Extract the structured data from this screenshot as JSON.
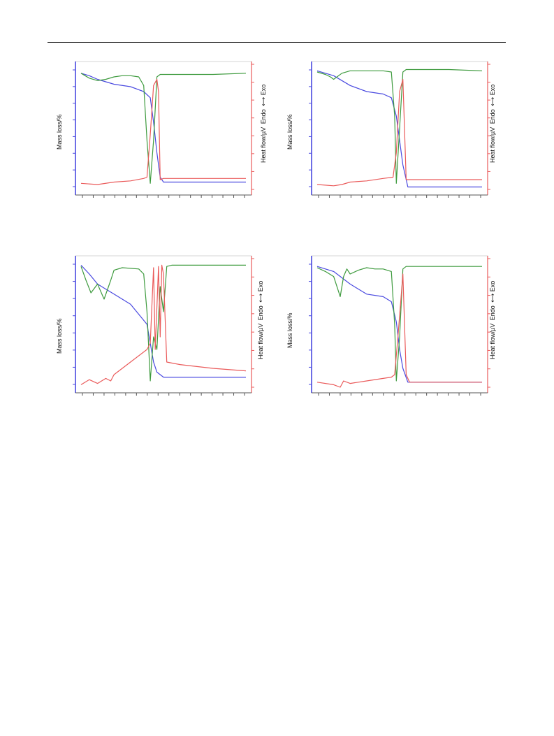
{
  "figure": {
    "left_axis_label": "Mass loss/%",
    "right_axis_label": "Heat flow/µV",
    "endo_label": "Endo",
    "exo_label": "Exo",
    "colors": {
      "mass_curve": "#4a4ae0",
      "dtg_curve": "#3d9a3d",
      "heat_curve": "#ea5a5a",
      "left_axis": "#4a4ae0",
      "right_axis": "#ea5a5a"
    }
  },
  "chart_data": [
    {
      "type": "line",
      "panel": "top-left",
      "x_range": [
        0,
        100
      ],
      "left_ylim": [
        0,
        100
      ],
      "right_ylim": [
        0,
        100
      ],
      "left_ticks": 8,
      "right_ticks": 8,
      "x_ticks": 16,
      "series": [
        {
          "key": "mass",
          "axis": "left",
          "x": [
            0,
            5,
            10,
            20,
            30,
            38,
            42,
            44,
            46,
            48,
            50,
            60,
            80,
            100
          ],
          "y": [
            95,
            93,
            90,
            86,
            84,
            80,
            75,
            55,
            30,
            10,
            6,
            6,
            6,
            6
          ]
        },
        {
          "key": "dtg",
          "axis": "left",
          "x": [
            0,
            5,
            10,
            15,
            20,
            25,
            30,
            35,
            38,
            40,
            42,
            44,
            46,
            48,
            50,
            60,
            80,
            100
          ],
          "y": [
            95,
            91,
            89,
            90,
            92,
            93,
            93,
            92,
            85,
            40,
            5,
            40,
            92,
            94,
            94,
            94,
            94,
            95
          ]
        },
        {
          "key": "heat",
          "axis": "right",
          "x": [
            0,
            10,
            20,
            30,
            38,
            40,
            42,
            44,
            46,
            47,
            48,
            50,
            60,
            80,
            100
          ],
          "y": [
            5,
            4,
            6,
            7,
            9,
            10,
            45,
            85,
            90,
            80,
            8,
            9,
            9,
            9,
            9
          ]
        }
      ]
    },
    {
      "type": "line",
      "panel": "top-right",
      "x_range": [
        0,
        100
      ],
      "left_ylim": [
        0,
        100
      ],
      "right_ylim": [
        0,
        100
      ],
      "left_ticks": 8,
      "right_ticks": 8,
      "x_ticks": 16,
      "series": [
        {
          "key": "mass",
          "axis": "left",
          "x": [
            0,
            10,
            20,
            30,
            40,
            45,
            48,
            50,
            52,
            55,
            60,
            80,
            100
          ],
          "y": [
            97,
            93,
            85,
            80,
            78,
            75,
            60,
            40,
            20,
            2,
            2,
            2,
            2
          ]
        },
        {
          "key": "dtg",
          "axis": "left",
          "x": [
            0,
            5,
            8,
            10,
            15,
            20,
            30,
            40,
            45,
            47,
            48,
            50,
            52,
            54,
            60,
            80,
            100
          ],
          "y": [
            96,
            94,
            92,
            90,
            95,
            97,
            97,
            97,
            96,
            60,
            5,
            50,
            96,
            98,
            98,
            98,
            97
          ]
        },
        {
          "key": "heat",
          "axis": "right",
          "x": [
            0,
            10,
            15,
            20,
            30,
            40,
            46,
            48,
            50,
            52,
            54,
            56,
            60,
            80,
            100
          ],
          "y": [
            4,
            3,
            4,
            6,
            7,
            9,
            10,
            30,
            80,
            90,
            8,
            8,
            8,
            8,
            8
          ]
        }
      ]
    },
    {
      "type": "line",
      "panel": "bottom-left",
      "x_range": [
        0,
        100
      ],
      "left_ylim": [
        0,
        100
      ],
      "right_ylim": [
        0,
        100
      ],
      "left_ticks": 8,
      "right_ticks": 8,
      "x_ticks": 16,
      "series": [
        {
          "key": "mass",
          "axis": "left",
          "x": [
            0,
            5,
            10,
            15,
            20,
            30,
            40,
            42,
            44,
            46,
            50,
            60,
            80,
            100
          ],
          "y": [
            97,
            90,
            82,
            78,
            74,
            66,
            50,
            35,
            20,
            12,
            8,
            8,
            8,
            8
          ]
        },
        {
          "key": "dtg",
          "axis": "left",
          "x": [
            0,
            3,
            6,
            10,
            14,
            18,
            20,
            25,
            35,
            38,
            40,
            42,
            44,
            46,
            48,
            50,
            52,
            55,
            60,
            80,
            100
          ],
          "y": [
            96,
            85,
            75,
            82,
            70,
            85,
            93,
            95,
            94,
            90,
            60,
            5,
            40,
            30,
            80,
            60,
            96,
            97,
            97,
            97,
            97
          ]
        },
        {
          "key": "heat",
          "axis": "right",
          "x": [
            0,
            5,
            10,
            15,
            18,
            20,
            30,
            40,
            42,
            44,
            45,
            47,
            48,
            49,
            50,
            52,
            60,
            80,
            100
          ],
          "y": [
            2,
            6,
            3,
            7,
            5,
            10,
            20,
            30,
            35,
            95,
            30,
            96,
            40,
            97,
            90,
            20,
            18,
            15,
            13
          ]
        }
      ]
    },
    {
      "type": "line",
      "panel": "bottom-right",
      "x_range": [
        0,
        100
      ],
      "left_ylim": [
        0,
        100
      ],
      "right_ylim": [
        0,
        100
      ],
      "left_ticks": 8,
      "right_ticks": 8,
      "x_ticks": 16,
      "series": [
        {
          "key": "mass",
          "axis": "left",
          "x": [
            0,
            10,
            20,
            30,
            40,
            45,
            48,
            50,
            52,
            55,
            60,
            80,
            100
          ],
          "y": [
            96,
            92,
            82,
            74,
            72,
            68,
            52,
            30,
            15,
            4,
            4,
            4,
            4
          ]
        },
        {
          "key": "dtg",
          "axis": "left",
          "x": [
            0,
            5,
            10,
            14,
            16,
            18,
            20,
            25,
            30,
            35,
            40,
            45,
            47,
            48,
            50,
            52,
            54,
            60,
            80,
            100
          ],
          "y": [
            95,
            92,
            88,
            72,
            88,
            94,
            90,
            93,
            95,
            94,
            94,
            92,
            50,
            5,
            40,
            94,
            96,
            96,
            96,
            96
          ]
        },
        {
          "key": "heat",
          "axis": "right",
          "x": [
            0,
            10,
            14,
            16,
            20,
            30,
            40,
            45,
            47,
            49,
            52,
            54,
            56,
            60,
            80,
            100
          ],
          "y": [
            4,
            2,
            0,
            5,
            3,
            5,
            7,
            8,
            10,
            40,
            90,
            10,
            4,
            4,
            4,
            4
          ]
        }
      ]
    }
  ]
}
